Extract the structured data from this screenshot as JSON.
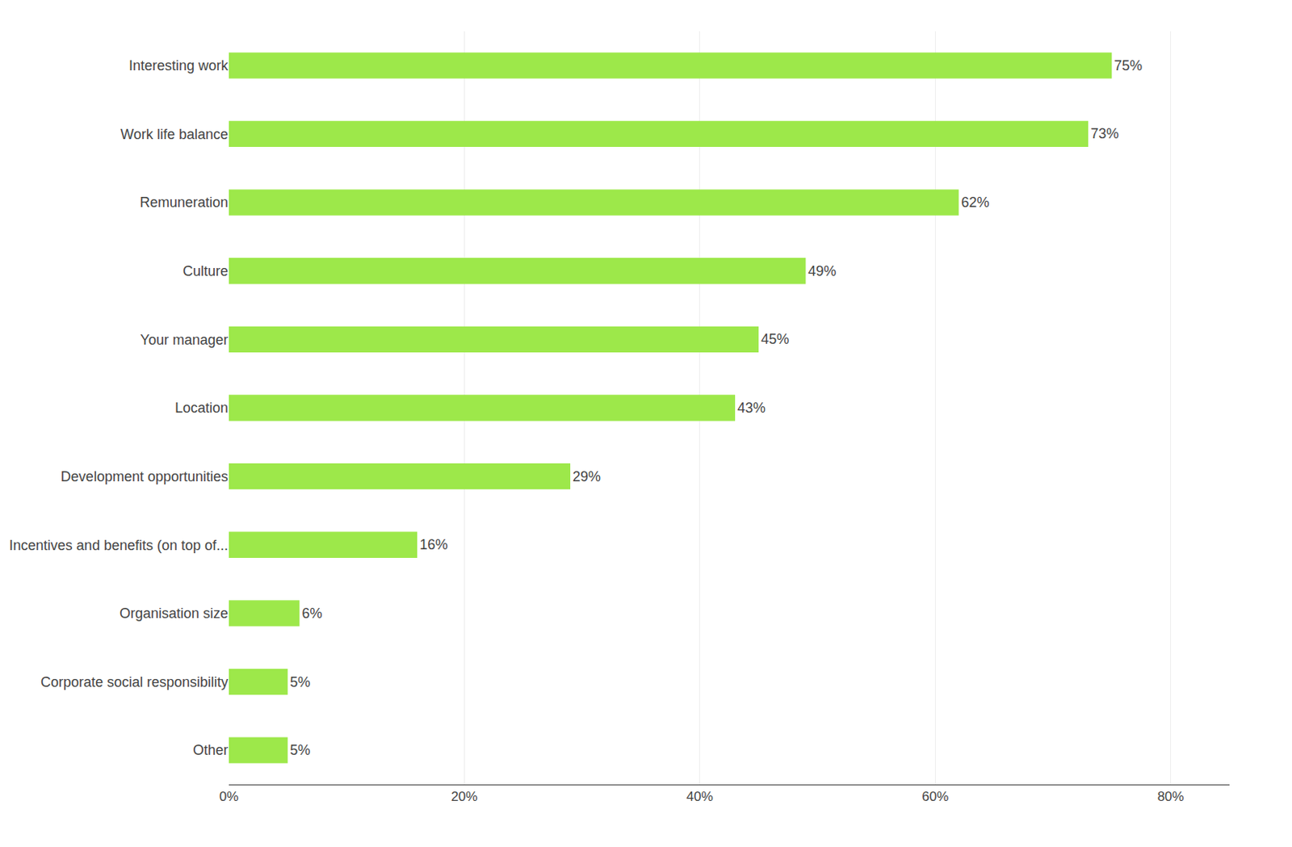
{
  "chart_data": {
    "type": "bar",
    "orientation": "horizontal",
    "categories": [
      "Other",
      "Corporate social responsibility",
      "Organisation size",
      "Incentives and benefits (on top of...",
      "Development opportunities",
      "Location",
      "Your manager",
      "Culture",
      "Remuneration",
      "Work life balance",
      "Interesting work"
    ],
    "values": [
      5,
      5,
      6,
      16,
      29,
      43,
      45,
      49,
      62,
      73,
      75
    ],
    "value_labels": [
      "5%",
      "5%",
      "6%",
      "16%",
      "29%",
      "43%",
      "45%",
      "49%",
      "62%",
      "73%",
      "75%"
    ],
    "data_labels": true,
    "color": "#9de84a",
    "xlim": [
      0,
      85
    ],
    "xticks": [
      {
        "value": 0,
        "label": "0%"
      },
      {
        "value": 20,
        "label": "20%"
      },
      {
        "value": 40,
        "label": "40%"
      },
      {
        "value": 60,
        "label": "60%"
      },
      {
        "value": 80,
        "label": "80%"
      }
    ],
    "grid": true
  }
}
